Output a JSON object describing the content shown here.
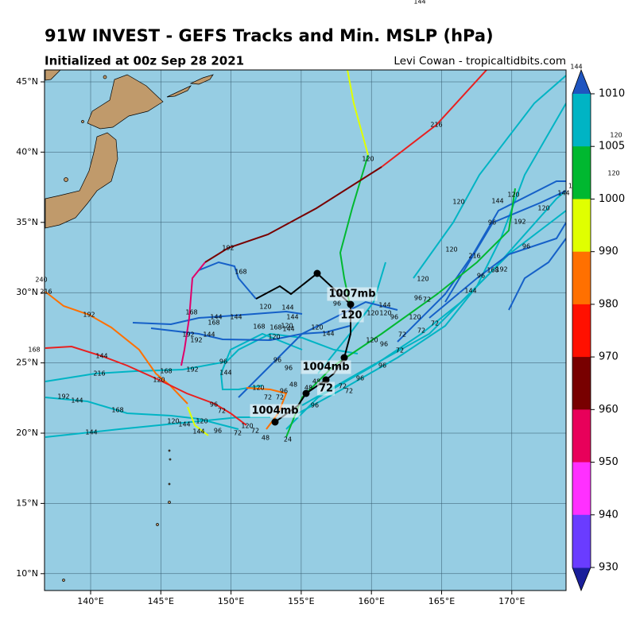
{
  "header": {
    "title": "91W INVEST - GEFS Tracks and Min. MSLP (hPa)",
    "subtitle": "Initialized at 00z Sep 28 2021",
    "credit": "Levi Cowan - tropicaltidbits.com"
  },
  "map": {
    "lon_labels": [
      "140°E",
      "145°E",
      "150°E",
      "155°E",
      "160°E",
      "165°E",
      "170°E"
    ],
    "lat_labels": [
      "45°N",
      "40°N",
      "35°N",
      "30°N",
      "25°N",
      "20°N",
      "15°N",
      "10°N"
    ],
    "annotations": [
      "1007mb",
      "120",
      "1004mb",
      "72",
      "1004mb"
    ],
    "track_labels": [
      "216",
      "120",
      "192",
      "168",
      "120",
      "144",
      "120",
      "120",
      "144",
      "96",
      "192",
      "96",
      "120",
      "216",
      "96",
      "168",
      "192",
      "120",
      "144",
      "96",
      "72",
      "144",
      "120",
      "120",
      "96",
      "120",
      "72",
      "72",
      "72",
      "120",
      "96",
      "72",
      "96",
      "96",
      "120",
      "144",
      "144",
      "120",
      "168",
      "168",
      "144",
      "120",
      "120",
      "144",
      "96",
      "96",
      "96",
      "192",
      "168",
      "144",
      "168",
      "144",
      "192",
      "144",
      "192",
      "144",
      "216",
      "168",
      "192",
      "120",
      "96",
      "144",
      "120",
      "72",
      "72",
      "96",
      "48",
      "48",
      "48",
      "72",
      "72",
      "96",
      "96",
      "72",
      "120",
      "120",
      "144",
      "144",
      "96",
      "72",
      "120",
      "48",
      "24",
      "72",
      "216",
      "240",
      "192",
      "144",
      "168",
      "144",
      "168"
    ],
    "stray_labels": [
      "144",
      "144",
      "120",
      "120",
      "16"
    ]
  },
  "colorbar": {
    "labels": [
      1010,
      1005,
      1000,
      990,
      980,
      970,
      960,
      950,
      940,
      930
    ]
  }
}
